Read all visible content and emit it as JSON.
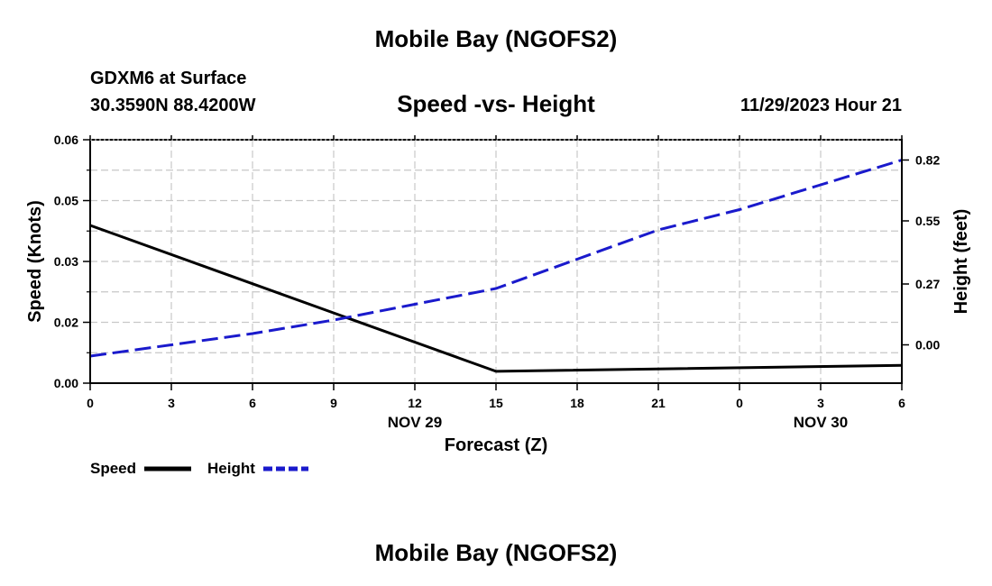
{
  "header": {
    "title": "Mobile Bay (NGOFS2)",
    "station": "GDXM6 at Surface",
    "coordinates": "30.3590N  88.4200W",
    "datetime": "11/29/2023 Hour 21"
  },
  "footer": {
    "title": "Mobile Bay (NGOFS2)"
  },
  "chart_data": {
    "type": "line",
    "title": "Speed -vs- Height",
    "xlabel": "Forecast (Z)",
    "ylabel_left": "Speed (Knots)",
    "ylabel_right": "Height (feet)",
    "x_ticks": [
      "0",
      "3",
      "6",
      "9",
      "12",
      "15",
      "18",
      "21",
      "0",
      "3",
      "6"
    ],
    "x_day_labels": [
      {
        "label": "NOV 29",
        "at_hour": 12
      },
      {
        "label": "NOV 30",
        "at_hour": 27
      }
    ],
    "xlim": [
      0,
      30
    ],
    "ylim_left": [
      0,
      0.06
    ],
    "y_ticks_left": [
      "0.00",
      "0.02",
      "0.03",
      "0.05",
      "0.06"
    ],
    "y_tick_values_left": [
      0.0,
      0.015,
      0.03,
      0.045,
      0.06
    ],
    "ylim_right": [
      -0.17,
      0.91
    ],
    "y_ticks_right": [
      "0.00",
      "0.27",
      "0.55",
      "0.82"
    ],
    "y_tick_values_right": [
      0.0,
      0.27,
      0.55,
      0.82
    ],
    "grid": true,
    "legend_position": "bottom-left",
    "series": [
      {
        "name": "Speed",
        "axis": "left",
        "color": "#000000",
        "style": "solid",
        "x": [
          0,
          15,
          30
        ],
        "values": [
          0.0389,
          0.0029,
          0.0044
        ]
      },
      {
        "name": "Height",
        "axis": "right",
        "color": "#1a1acc",
        "style": "dashed",
        "x": [
          0,
          3,
          6,
          9,
          12,
          15,
          18,
          21,
          24,
          27,
          30
        ],
        "values": [
          -0.05,
          0.0,
          0.05,
          0.11,
          0.18,
          0.25,
          0.38,
          0.51,
          0.6,
          0.71,
          0.82
        ]
      }
    ]
  }
}
